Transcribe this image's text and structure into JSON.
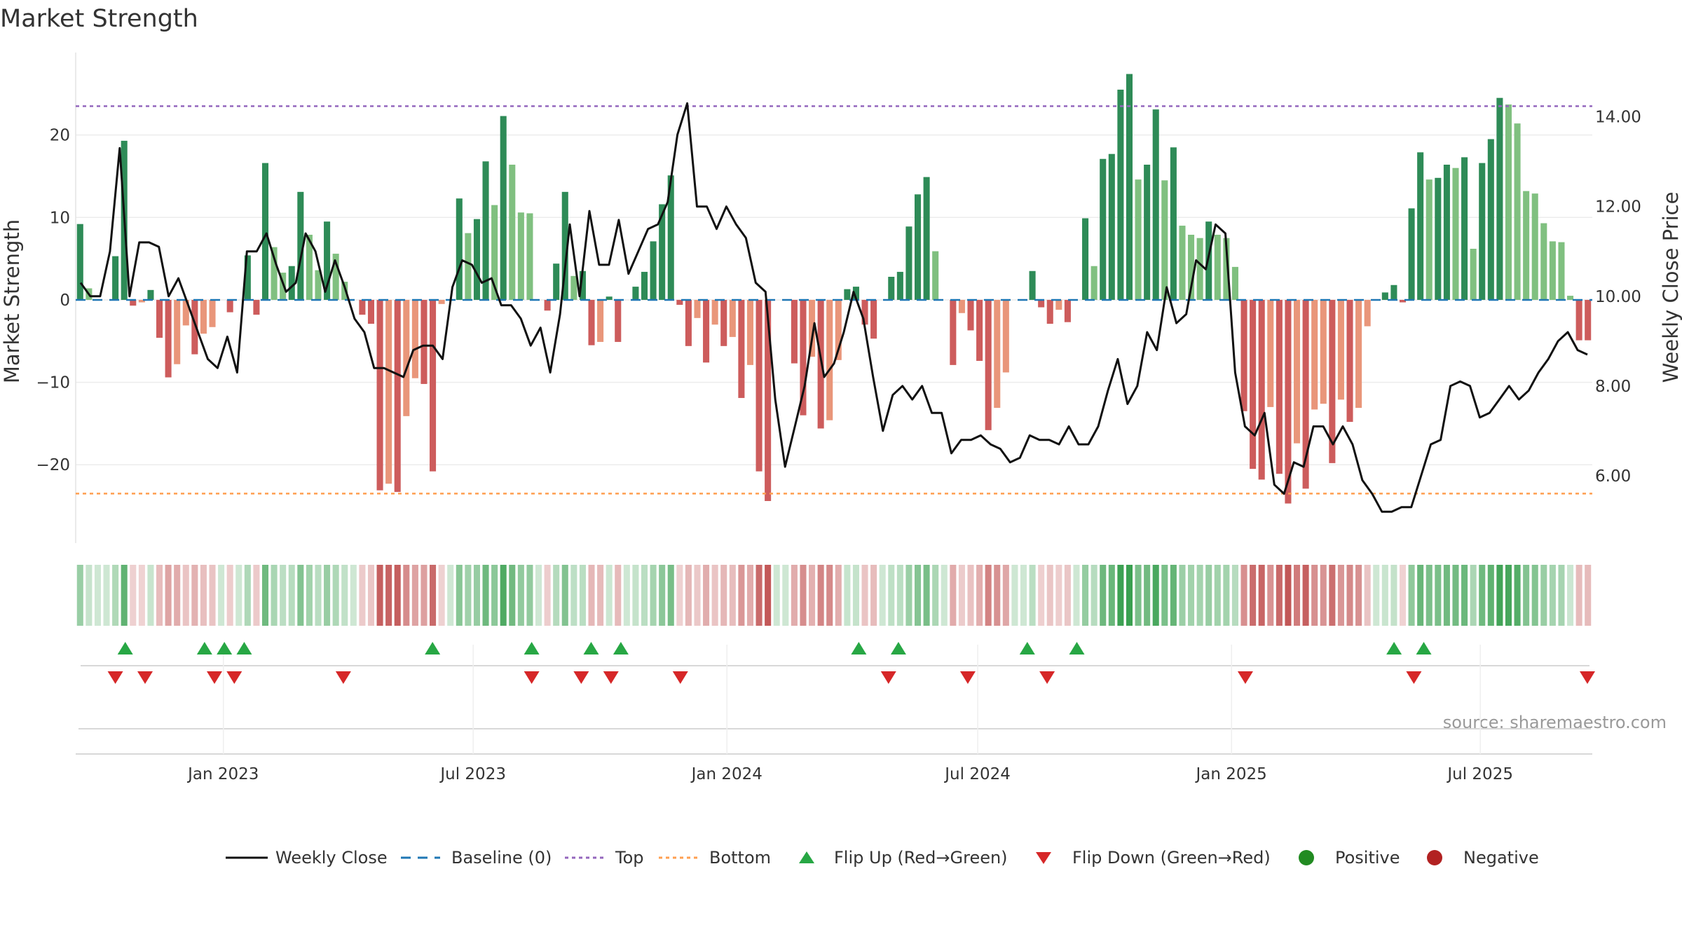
{
  "chart_data": {
    "type": "bar+line",
    "title": "Market Strength",
    "source": "source: sharemaestro.com",
    "y_left": {
      "label": "Market Strength",
      "range": [
        -29.5,
        30
      ],
      "ticks": [
        20,
        10,
        0,
        -10,
        -20
      ],
      "tick_labels": [
        "20",
        "10",
        "0",
        "−10",
        "−20"
      ]
    },
    "y_right": {
      "label": "Weekly Close Price",
      "range": [
        4.5,
        15.43
      ],
      "ticks": [
        14,
        12,
        10,
        8,
        6
      ],
      "tick_labels": [
        "14.00",
        "12.00",
        "10.00",
        "8.00",
        "6.00"
      ]
    },
    "x_axis": {
      "range": [
        0,
        153
      ],
      "ticks": [
        14.9,
        40.1,
        65.7,
        91.0,
        116.6,
        141.7
      ],
      "tick_labels": [
        "Jan 2023",
        "Jul 2023",
        "Jan 2024",
        "Jul 2024",
        "Jan 2025",
        "Jul 2025"
      ]
    },
    "top_line": 23.5,
    "bottom_line": -23.5,
    "strength": [
      9.2,
      1.4,
      0,
      0,
      5.3,
      19.3,
      -0.7,
      -0.3,
      1.2,
      -4.6,
      -9.4,
      -7.8,
      -3.1,
      -6.6,
      -4.1,
      -3.3,
      0,
      -1.5,
      0,
      5.4,
      -1.8,
      16.6,
      6.4,
      3.3,
      4.1,
      13.1,
      7.9,
      3.6,
      9.5,
      5.6,
      2.2,
      0,
      -1.8,
      -2.9,
      -23.1,
      -22.3,
      -23.3,
      -14.1,
      -9.5,
      -10.2,
      -20.8,
      -0.5,
      0,
      12.3,
      8.1,
      9.8,
      16.8,
      11.5,
      22.3,
      16.4,
      10.6,
      10.5,
      0,
      -1.3,
      4.4,
      13.1,
      2.9,
      3.5,
      -5.5,
      -5.1,
      0.4,
      -5.1,
      0,
      1.6,
      3.4,
      7.1,
      11.6,
      15.1,
      -0.6,
      -5.6,
      -2.2,
      -7.6,
      -3.0,
      -5.6,
      -4.5,
      -11.9,
      -7.9,
      -20.8,
      -24.4,
      0,
      0,
      -7.7,
      -14.0,
      -6.9,
      -15.6,
      -14.6,
      -7.3,
      1.3,
      1.6,
      -3.0,
      -4.7,
      0,
      2.8,
      3.4,
      8.9,
      12.8,
      14.9,
      5.9,
      0,
      -7.9,
      -1.6,
      -3.7,
      -7.4,
      -15.8,
      -13.1,
      -8.8,
      0,
      0,
      3.5,
      -0.9,
      -2.9,
      -1.2,
      -2.7,
      0,
      9.9,
      4.1,
      17.1,
      17.7,
      25.5,
      27.4,
      14.6,
      16.4,
      23.1,
      14.5,
      18.5,
      9.0,
      7.9,
      7.5,
      9.5,
      7.9,
      7.5,
      4.0,
      -13.5,
      -20.5,
      -21.8,
      -13.0,
      -21.1,
      -24.7,
      -17.4,
      -22.9,
      -13.3,
      -12.6,
      -19.8,
      -12.1,
      -14.8,
      -13.1,
      -3.2,
      0,
      0.9,
      1.8,
      -0.3,
      11.1,
      17.9,
      14.6,
      14.8,
      16.4,
      16.0,
      17.3,
      6.2,
      16.6,
      19.5,
      24.5,
      23.7,
      21.4,
      13.2,
      12.9,
      9.3,
      7.1,
      7.0,
      0.5,
      -4.9,
      -4.9
    ],
    "weekly_close": [
      10.3,
      10.0,
      10.0,
      11.0,
      13.3,
      10.0,
      11.2,
      11.2,
      11.1,
      10.0,
      10.4,
      9.8,
      9.2,
      8.6,
      8.4,
      9.1,
      8.3,
      11.0,
      11.0,
      11.4,
      10.7,
      10.1,
      10.3,
      11.4,
      11.0,
      10.1,
      10.8,
      10.2,
      9.5,
      9.2,
      8.4,
      8.4,
      8.3,
      8.2,
      8.8,
      8.9,
      8.9,
      8.6,
      10.2,
      10.8,
      10.7,
      10.3,
      10.4,
      9.8,
      9.8,
      9.5,
      8.9,
      9.3,
      8.3,
      9.6,
      11.6,
      10.0,
      11.9,
      10.7,
      10.7,
      11.7,
      10.5,
      11.0,
      11.5,
      11.6,
      12.1,
      13.6,
      14.3,
      12.0,
      12.0,
      11.5,
      12.0,
      11.6,
      11.3,
      10.3,
      10.1,
      7.7,
      6.2,
      7.1,
      8.0,
      9.4,
      8.2,
      8.5,
      9.2,
      10.1,
      9.5,
      8.2,
      7.0,
      7.8,
      8.0,
      7.7,
      8.0,
      7.4,
      7.4,
      6.5,
      6.8,
      6.8,
      6.9,
      6.7,
      6.6,
      6.3,
      6.4,
      6.9,
      6.8,
      6.8,
      6.7,
      7.1,
      6.7,
      6.7,
      7.1,
      7.9,
      8.6,
      7.6,
      8.0,
      9.2,
      8.8,
      10.2,
      9.4,
      9.6,
      10.8,
      10.6,
      11.6,
      11.4,
      8.3,
      7.1,
      6.9,
      7.4,
      5.8,
      5.6,
      6.3,
      6.2,
      7.1,
      7.1,
      6.7,
      7.1,
      6.7,
      5.9,
      5.6,
      5.2,
      5.2,
      5.3,
      5.3,
      6.0,
      6.7,
      6.8,
      8.0,
      8.1,
      8.0,
      7.3,
      7.4,
      7.7,
      8.0,
      7.7,
      7.9,
      8.3,
      8.6,
      9.0,
      9.2,
      8.8,
      8.7
    ],
    "heat_strip_source": "strength",
    "flip_up_x": [
      5,
      13,
      15,
      17,
      36,
      46,
      52,
      55,
      79,
      83,
      96,
      101,
      133,
      136
    ],
    "flip_down_x": [
      4,
      7,
      14,
      16,
      27,
      46,
      51,
      54,
      61,
      82,
      90,
      98,
      118,
      135,
      155
    ],
    "legend": [
      "Weekly Close",
      "Baseline (0)",
      "Top",
      "Bottom",
      "Flip Up (Red→Green)",
      "Flip Down (Green→Red)",
      "Positive",
      "Negative"
    ],
    "colors": {
      "strong_positive": "#2e8b57",
      "weak_positive": "#80c080",
      "strong_negative": "#cd5c5c",
      "weak_negative": "#e9967a",
      "line": "#111111",
      "baseline": "#1f77b4",
      "top": "#9467bd",
      "bottom": "#ff9f50",
      "flip_up": "#27a744",
      "flip_down": "#d62728",
      "positive_dot": "#228b22",
      "negative_dot": "#b22222"
    }
  }
}
